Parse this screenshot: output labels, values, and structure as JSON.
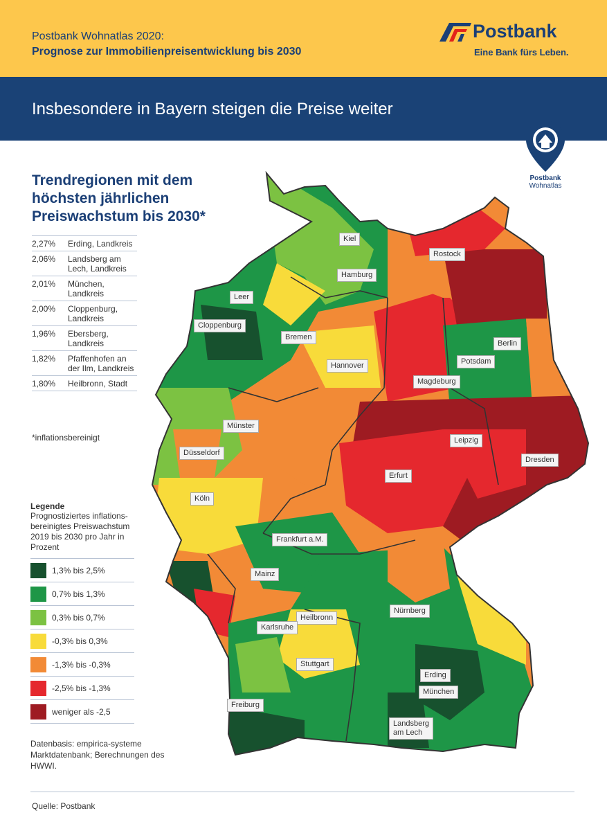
{
  "header": {
    "line1": "Postbank Wohnatlas 2020:",
    "line2": "Prognose zur Immobilienpreisentwicklung bis 2030",
    "logo_name": "Postbank",
    "logo_slogan": "Eine Bank fürs Leben."
  },
  "banner": {
    "title": "Insbesondere in Bayern steigen die Preise weiter"
  },
  "badge": {
    "line1": "Postbank",
    "line2": "Wohnatlas",
    "icon": "house-location-pin-icon"
  },
  "trend": {
    "title": "Trendregionen mit dem höchsten jährlichen Preiswachstum bis 2030*",
    "rows": [
      {
        "pct": "2,27%",
        "region": "Erding, Landkreis"
      },
      {
        "pct": "2,06%",
        "region": "Landsberg am Lech, Landkreis"
      },
      {
        "pct": "2,01%",
        "region": "München, Landkreis"
      },
      {
        "pct": "2,00%",
        "region": "Cloppenburg, Landkreis"
      },
      {
        "pct": "1,96%",
        "region": "Ebersberg, Landkreis"
      },
      {
        "pct": "1,82%",
        "region": "Pfaffenhofen an der Ilm, Landkreis"
      },
      {
        "pct": "1,80%",
        "region": "Heilbronn, Stadt"
      }
    ],
    "note": "*inflationsbereinigt"
  },
  "legend": {
    "title": "Legende",
    "description": "Prognostiziertes inflations-bereinigtes Preiswachstum 2019 bis 2030 pro Jahr in Prozent",
    "items": [
      {
        "label": "1,3% bis 2,5%",
        "color": "#17512e"
      },
      {
        "label": "0,7% bis 1,3%",
        "color": "#1e9647"
      },
      {
        "label": "0,3% bis 0,7%",
        "color": "#7cc242"
      },
      {
        "label": "-0,3% bis 0,3%",
        "color": "#f8db3a"
      },
      {
        "label": "-1,3% bis -0,3%",
        "color": "#f28a36"
      },
      {
        "label": "-2,5% bis -1,3%",
        "color": "#e5282e"
      },
      {
        "label": "weniger als -2,5",
        "color": "#9e1b22"
      }
    ]
  },
  "source": "Datenbasis: empirica-systeme Marktdatenbank; Berechnungen des HWWI.",
  "footer": "Quelle: Postbank",
  "cities": [
    "Kiel",
    "Rostock",
    "Hamburg",
    "Leer",
    "Cloppenburg",
    "Bremen",
    "Berlin",
    "Potsdam",
    "Hannover",
    "Magdeburg",
    "Münster",
    "Düsseldorf",
    "Leipzig",
    "Dresden",
    "Erfurt",
    "Köln",
    "Frankfurt a.M.",
    "Mainz",
    "Nürnberg",
    "Heilbronn",
    "Karlsruhe",
    "Stuttgart",
    "Erding",
    "München",
    "Freiburg",
    "Landsberg am Lech"
  ]
}
